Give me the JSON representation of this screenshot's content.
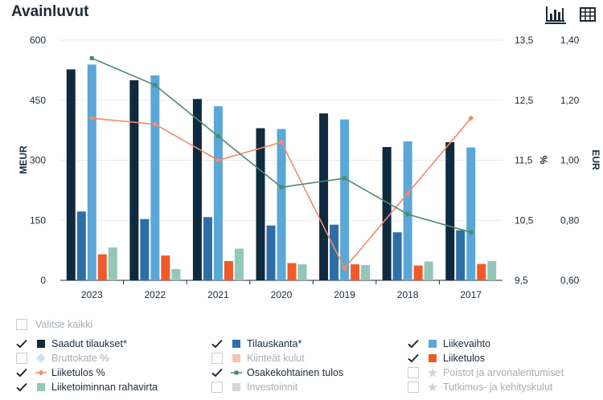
{
  "header": {
    "title": "Avainluvut"
  },
  "chart_data": {
    "type": "bar",
    "categories": [
      "2023",
      "2022",
      "2021",
      "2020",
      "2019",
      "2018",
      "2017"
    ],
    "left_axis": {
      "label": "MEUR",
      "ylim": [
        0,
        600
      ],
      "ticks": [
        "0",
        "150",
        "300",
        "450",
        "600"
      ]
    },
    "right_axis_pct": {
      "label": "%",
      "ylim": [
        9.5,
        13.5
      ],
      "ticks": [
        "9,5",
        "10,5",
        "11,5",
        "12,5",
        "13,5"
      ]
    },
    "right_axis_eur": {
      "label": "EUR",
      "ylim": [
        0.6,
        1.4
      ],
      "ticks": [
        "0,60",
        "0,80",
        "1,00",
        "1,20",
        "1,40"
      ]
    },
    "series": [
      {
        "name": "Saadut tilaukset*",
        "kind": "bar",
        "color": "#0f2a3f",
        "values": [
          527,
          500,
          453,
          380,
          417,
          333,
          345
        ]
      },
      {
        "name": "Tilauskanta*",
        "kind": "bar",
        "color": "#2e6ea6",
        "values": [
          172,
          153,
          158,
          137,
          139,
          120,
          125
        ]
      },
      {
        "name": "Liikevaihto",
        "kind": "bar",
        "color": "#5aa7d8",
        "values": [
          539,
          512,
          435,
          378,
          402,
          347,
          332
        ]
      },
      {
        "name": "Liiketulos",
        "kind": "bar",
        "color": "#f05a2a",
        "values": [
          65,
          62,
          48,
          43,
          40,
          37,
          41
        ]
      },
      {
        "name": "Liiketoiminnan rahavirta",
        "kind": "bar",
        "color": "#93c7b8",
        "values": [
          82,
          28,
          79,
          40,
          38,
          47,
          48
        ]
      },
      {
        "name": "Liiketulos %",
        "kind": "line",
        "axis": "pct",
        "color": "#f58a67",
        "values": [
          12.2,
          12.1,
          11.5,
          11.8,
          9.7,
          10.95,
          12.2
        ]
      },
      {
        "name": "Osakekohtainen tulos",
        "kind": "line",
        "axis": "eur",
        "color": "#4e8a6e",
        "values": [
          1.34,
          1.25,
          1.08,
          0.91,
          0.94,
          0.82,
          0.76
        ]
      }
    ]
  },
  "legend": {
    "select_all": "Valitse kaikki",
    "items": [
      {
        "label": "Saadut tilaukset*",
        "checked": true,
        "symbol": "square",
        "color": "#0f2a3f"
      },
      {
        "label": "Tilauskanta*",
        "checked": true,
        "symbol": "square",
        "color": "#2e6ea6"
      },
      {
        "label": "Liikevaihto",
        "checked": true,
        "symbol": "square",
        "color": "#5aa7d8"
      },
      {
        "label": "Bruttokate %",
        "checked": false,
        "symbol": "diamond",
        "color": "#cfe4ec"
      },
      {
        "label": "Kiinteät kulut",
        "checked": false,
        "symbol": "square",
        "color": "#f6c4b4"
      },
      {
        "label": "Liiketulos",
        "checked": true,
        "symbol": "square",
        "color": "#f05a2a"
      },
      {
        "label": "Liiketulos %",
        "checked": true,
        "symbol": "line-diamond",
        "color": "#f58a67"
      },
      {
        "label": "Osakekohtainen tulos",
        "checked": true,
        "symbol": "line-square",
        "color": "#4e8a6e"
      },
      {
        "label": "Poistot ja arvonalentumiset",
        "checked": false,
        "symbol": "star",
        "color": "#d0d4d8"
      },
      {
        "label": "Liiketoiminnan rahavirta",
        "checked": true,
        "symbol": "square",
        "color": "#93c7b8"
      },
      {
        "label": "Investoinnit",
        "checked": false,
        "symbol": "square",
        "color": "#d6d6d6"
      },
      {
        "label": "Tutkimus- ja kehityskulut",
        "checked": false,
        "symbol": "star",
        "color": "#d0d4d8"
      }
    ]
  }
}
